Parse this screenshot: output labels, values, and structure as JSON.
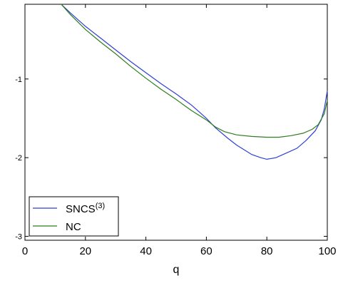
{
  "chart_data": {
    "type": "line",
    "xlabel": "q",
    "ylabel": "",
    "xlim": [
      0,
      100
    ],
    "ylim": [
      -3.05,
      -0.05
    ],
    "x_ticks": [
      0,
      20,
      40,
      60,
      80,
      100
    ],
    "y_ticks": [
      -1,
      -2,
      -3
    ],
    "grid": false,
    "legend_position": "bottom-left",
    "series": [
      {
        "name": "SNCS",
        "name_superscript": "(3)",
        "color": "#2f3fd6",
        "points": [
          [
            12,
            -0.05
          ],
          [
            15,
            -0.16
          ],
          [
            20,
            -0.33
          ],
          [
            25,
            -0.48
          ],
          [
            30,
            -0.63
          ],
          [
            35,
            -0.78
          ],
          [
            40,
            -0.92
          ],
          [
            45,
            -1.06
          ],
          [
            50,
            -1.19
          ],
          [
            55,
            -1.33
          ],
          [
            58,
            -1.43
          ],
          [
            60,
            -1.5
          ],
          [
            63,
            -1.62
          ],
          [
            67,
            -1.75
          ],
          [
            70,
            -1.84
          ],
          [
            75,
            -1.96
          ],
          [
            78,
            -2.0
          ],
          [
            80,
            -2.02
          ],
          [
            83,
            -2.0
          ],
          [
            86,
            -1.95
          ],
          [
            90,
            -1.88
          ],
          [
            93,
            -1.78
          ],
          [
            96,
            -1.66
          ],
          [
            98,
            -1.52
          ],
          [
            99,
            -1.38
          ],
          [
            100,
            -1.15
          ]
        ]
      },
      {
        "name": "NC",
        "color": "#2e7d1f",
        "points": [
          [
            12,
            -0.05
          ],
          [
            15,
            -0.18
          ],
          [
            20,
            -0.37
          ],
          [
            25,
            -0.53
          ],
          [
            30,
            -0.68
          ],
          [
            35,
            -0.84
          ],
          [
            40,
            -0.99
          ],
          [
            45,
            -1.13
          ],
          [
            50,
            -1.26
          ],
          [
            55,
            -1.4
          ],
          [
            60,
            -1.52
          ],
          [
            63,
            -1.61
          ],
          [
            66,
            -1.67
          ],
          [
            70,
            -1.71
          ],
          [
            75,
            -1.73
          ],
          [
            80,
            -1.74
          ],
          [
            84,
            -1.74
          ],
          [
            88,
            -1.72
          ],
          [
            92,
            -1.69
          ],
          [
            95,
            -1.64
          ],
          [
            97,
            -1.58
          ],
          [
            99,
            -1.44
          ],
          [
            100,
            -1.27
          ]
        ]
      }
    ]
  }
}
